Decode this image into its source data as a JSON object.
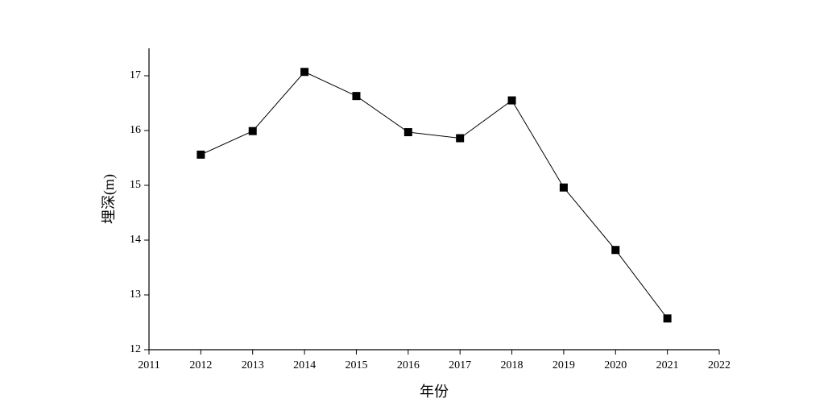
{
  "chart_data": {
    "type": "line",
    "xlabel": "年份",
    "ylabel": "埋深(m)",
    "x": [
      2012,
      2013,
      2014,
      2015,
      2016,
      2017,
      2018,
      2019,
      2020,
      2021
    ],
    "series": [
      {
        "color": "#000000",
        "values": [
          15.56,
          15.99,
          17.07,
          16.63,
          15.97,
          15.86,
          16.55,
          14.96,
          13.82,
          12.57
        ]
      }
    ],
    "xlim": [
      2011,
      2022
    ],
    "xticks": [
      2011,
      2012,
      2013,
      2014,
      2015,
      2016,
      2017,
      2018,
      2019,
      2020,
      2021,
      2022
    ],
    "ylim": [
      12,
      17.5
    ],
    "yticks": [
      12,
      13,
      14,
      15,
      16,
      17
    ]
  }
}
